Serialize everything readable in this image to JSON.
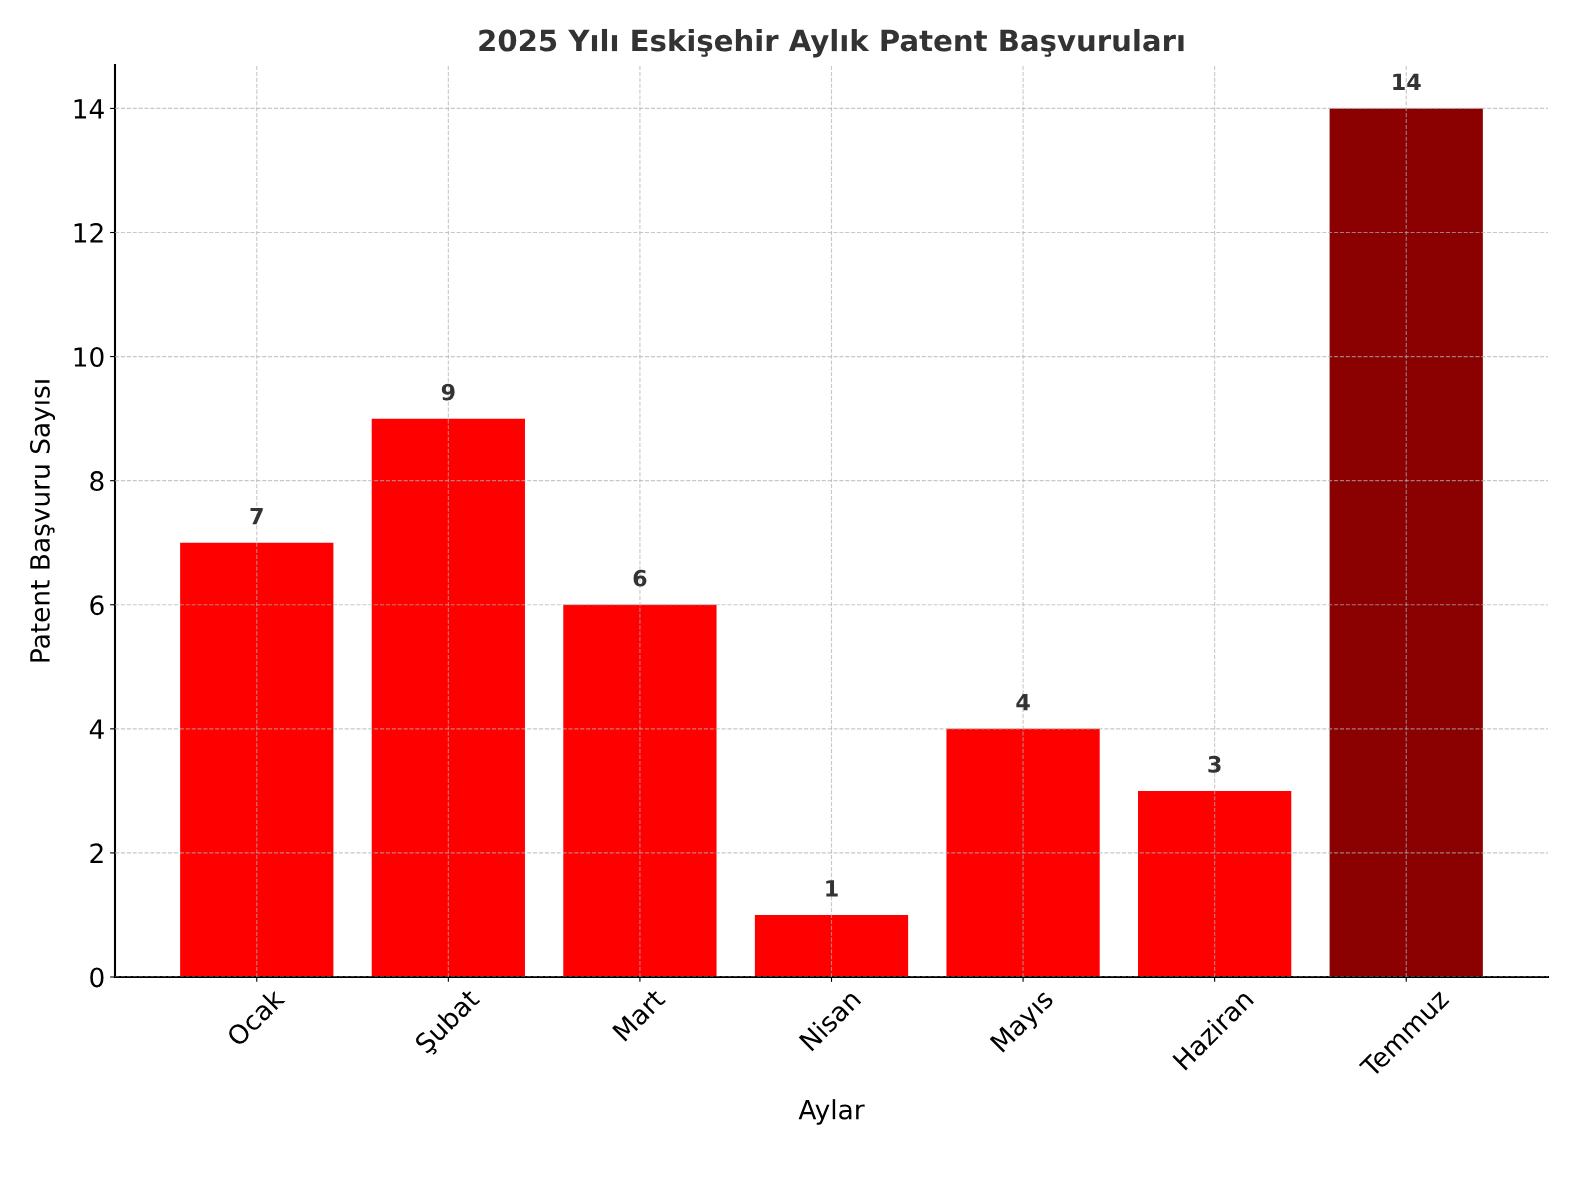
{
  "chart_data": {
    "type": "bar",
    "title": "2025 Yılı Eskişehir Aylık Patent Başvuruları",
    "xlabel": "Aylar",
    "ylabel": "Patent Başvuru Sayısı",
    "categories": [
      "Ocak",
      "Şubat",
      "Mart",
      "Nisan",
      "Mayıs",
      "Haziran",
      "Temmuz"
    ],
    "values": [
      7,
      9,
      6,
      1,
      4,
      3,
      14
    ],
    "colors": [
      "#ff0000",
      "#ff0000",
      "#ff0000",
      "#ff0000",
      "#ff0000",
      "#ff0000",
      "#8b0000"
    ],
    "ylim": [
      0,
      14.7
    ],
    "yticks": [
      0,
      2,
      4,
      6,
      8,
      10,
      12,
      14
    ],
    "grid": true,
    "data_labels": true
  }
}
